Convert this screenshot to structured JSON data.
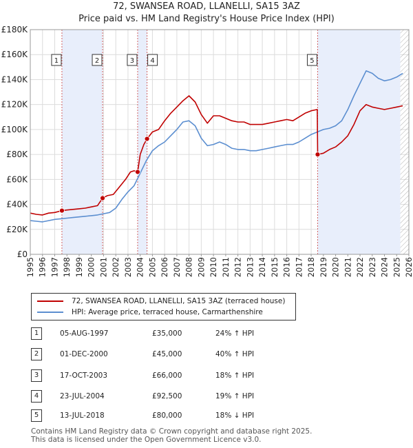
{
  "title_line1": "72, SWANSEA ROAD, LLANELLI, SA15 3AZ",
  "title_line2": "Price paid vs. HM Land Registry's House Price Index (HPI)",
  "colors": {
    "price": "#c00000",
    "hpi": "#5b8ed0",
    "shade": "#e8eefb",
    "vline": "#d06060"
  },
  "chart_data": {
    "type": "line",
    "xlim": [
      1995,
      2026
    ],
    "ylim": [
      0,
      180000
    ],
    "y_ticks": [
      0,
      20000,
      40000,
      60000,
      80000,
      100000,
      120000,
      140000,
      160000,
      180000
    ],
    "y_tick_labels": [
      "£0",
      "£20K",
      "£40K",
      "£60K",
      "£80K",
      "£100K",
      "£120K",
      "£140K",
      "£160K",
      "£180K"
    ],
    "x_ticks": [
      1995,
      1996,
      1997,
      1998,
      1999,
      2000,
      2001,
      2002,
      2003,
      2004,
      2005,
      2006,
      2007,
      2008,
      2009,
      2010,
      2011,
      2012,
      2013,
      2014,
      2015,
      2016,
      2017,
      2018,
      2019,
      2020,
      2021,
      2022,
      2023,
      2024,
      2025,
      2026
    ],
    "x_tick_labels": [
      "1995",
      "1996",
      "1997",
      "1998",
      "1999",
      "2000",
      "2001",
      "2002",
      "2003",
      "2004",
      "2005",
      "2006",
      "2007",
      "2008",
      "2009",
      "2010",
      "2011",
      "2012",
      "2013",
      "2014",
      "2015",
      "2016",
      "2017",
      "2018",
      "2019",
      "2020",
      "2021",
      "2022",
      "2023",
      "2024",
      "2025",
      "2026"
    ],
    "shaded_ranges": [
      [
        1997.59,
        2000.92
      ],
      [
        2003.79,
        2004.56
      ],
      [
        2018.53,
        2025.3
      ]
    ],
    "hatch_from": 2025.3,
    "series": [
      {
        "name": "72, SWANSEA ROAD, LLANELLI, SA15 3AZ (terraced house)",
        "points": [
          [
            1995,
            33000
          ],
          [
            1995.5,
            32000
          ],
          [
            1996,
            31500
          ],
          [
            1996.5,
            33000
          ],
          [
            1997,
            33500
          ],
          [
            1997.59,
            35000
          ],
          [
            1998,
            35500
          ],
          [
            1998.5,
            36000
          ],
          [
            1999,
            36500
          ],
          [
            1999.5,
            37000
          ],
          [
            2000,
            38000
          ],
          [
            2000.5,
            39000
          ],
          [
            2000.92,
            45000
          ],
          [
            2001.3,
            47000
          ],
          [
            2001.8,
            48000
          ],
          [
            2002.3,
            54000
          ],
          [
            2002.8,
            60000
          ],
          [
            2003.2,
            66000
          ],
          [
            2003.5,
            67000
          ],
          [
            2003.79,
            66000
          ],
          [
            2004.0,
            80000
          ],
          [
            2004.3,
            88000
          ],
          [
            2004.56,
            92500
          ],
          [
            2005.0,
            98000
          ],
          [
            2005.5,
            100000
          ],
          [
            2006,
            107000
          ],
          [
            2006.5,
            113000
          ],
          [
            2007,
            118000
          ],
          [
            2007.5,
            123000
          ],
          [
            2008,
            127000
          ],
          [
            2008.5,
            122000
          ],
          [
            2009,
            112000
          ],
          [
            2009.5,
            105000
          ],
          [
            2010,
            111000
          ],
          [
            2010.5,
            111000
          ],
          [
            2011,
            109000
          ],
          [
            2011.5,
            107000
          ],
          [
            2012,
            106000
          ],
          [
            2012.5,
            106000
          ],
          [
            2013,
            104000
          ],
          [
            2013.5,
            104000
          ],
          [
            2014,
            104000
          ],
          [
            2014.5,
            105000
          ],
          [
            2015,
            106000
          ],
          [
            2015.5,
            107000
          ],
          [
            2016,
            108000
          ],
          [
            2016.5,
            107000
          ],
          [
            2017,
            110000
          ],
          [
            2017.5,
            113000
          ],
          [
            2018,
            115000
          ],
          [
            2018.5,
            116000
          ],
          [
            2018.53,
            80000
          ],
          [
            2019,
            81000
          ],
          [
            2019.5,
            84000
          ],
          [
            2020,
            86000
          ],
          [
            2020.5,
            90000
          ],
          [
            2021,
            95000
          ],
          [
            2021.5,
            104000
          ],
          [
            2022,
            115000
          ],
          [
            2022.5,
            120000
          ],
          [
            2023,
            118000
          ],
          [
            2023.5,
            117000
          ],
          [
            2024,
            116000
          ],
          [
            2024.5,
            117000
          ],
          [
            2025,
            118000
          ],
          [
            2025.5,
            119000
          ]
        ]
      },
      {
        "name": "HPI: Average price, terraced house, Carmarthenshire",
        "points": [
          [
            1995,
            27000
          ],
          [
            1995.5,
            26500
          ],
          [
            1996,
            26000
          ],
          [
            1996.5,
            27000
          ],
          [
            1997,
            28000
          ],
          [
            1997.5,
            28500
          ],
          [
            1998,
            29000
          ],
          [
            1998.5,
            29500
          ],
          [
            1999,
            30000
          ],
          [
            1999.5,
            30500
          ],
          [
            2000,
            31000
          ],
          [
            2000.5,
            31500
          ],
          [
            2001,
            32500
          ],
          [
            2001.5,
            33500
          ],
          [
            2002,
            37000
          ],
          [
            2002.5,
            44000
          ],
          [
            2003,
            50000
          ],
          [
            2003.5,
            55000
          ],
          [
            2004,
            65000
          ],
          [
            2004.5,
            75000
          ],
          [
            2005,
            83000
          ],
          [
            2005.5,
            87000
          ],
          [
            2006,
            90000
          ],
          [
            2006.5,
            95000
          ],
          [
            2007,
            100000
          ],
          [
            2007.5,
            106000
          ],
          [
            2008,
            107000
          ],
          [
            2008.5,
            103000
          ],
          [
            2009,
            93000
          ],
          [
            2009.5,
            87000
          ],
          [
            2010,
            88000
          ],
          [
            2010.5,
            90000
          ],
          [
            2011,
            88000
          ],
          [
            2011.5,
            85000
          ],
          [
            2012,
            84000
          ],
          [
            2012.5,
            84000
          ],
          [
            2013,
            83000
          ],
          [
            2013.5,
            83000
          ],
          [
            2014,
            84000
          ],
          [
            2014.5,
            85000
          ],
          [
            2015,
            86000
          ],
          [
            2015.5,
            87000
          ],
          [
            2016,
            88000
          ],
          [
            2016.5,
            88000
          ],
          [
            2017,
            90000
          ],
          [
            2017.5,
            93000
          ],
          [
            2018,
            96000
          ],
          [
            2018.5,
            98000
          ],
          [
            2019,
            100000
          ],
          [
            2019.5,
            101000
          ],
          [
            2020,
            103000
          ],
          [
            2020.5,
            107000
          ],
          [
            2021,
            116000
          ],
          [
            2021.5,
            127000
          ],
          [
            2022,
            137000
          ],
          [
            2022.5,
            147000
          ],
          [
            2023,
            145000
          ],
          [
            2023.5,
            141000
          ],
          [
            2024,
            139000
          ],
          [
            2024.5,
            140000
          ],
          [
            2025,
            142000
          ],
          [
            2025.5,
            145000
          ]
        ]
      }
    ],
    "sales": [
      {
        "num": "1",
        "x": 1997.59,
        "price": 35000,
        "date": "05-AUG-1997",
        "price_label": "£35,000",
        "hpi": "24% ↑ HPI"
      },
      {
        "num": "2",
        "x": 2000.92,
        "price": 45000,
        "date": "01-DEC-2000",
        "price_label": "£45,000",
        "hpi": "40% ↑ HPI"
      },
      {
        "num": "3",
        "x": 2003.79,
        "price": 66000,
        "date": "17-OCT-2003",
        "price_label": "£66,000",
        "hpi": "18% ↑ HPI"
      },
      {
        "num": "4",
        "x": 2004.56,
        "price": 92500,
        "date": "23-JUL-2004",
        "price_label": "£92,500",
        "hpi": "19% ↑ HPI"
      },
      {
        "num": "5",
        "x": 2018.53,
        "price": 80000,
        "date": "13-JUL-2018",
        "price_label": "£80,000",
        "hpi": "18% ↓ HPI"
      }
    ]
  },
  "legend": {
    "price_label": "72, SWANSEA ROAD, LLANELLI, SA15 3AZ (terraced house)",
    "hpi_label": "HPI: Average price, terraced house, Carmarthenshire"
  },
  "footer": {
    "line1": "Contains HM Land Registry data © Crown copyright and database right 2025.",
    "line2": "This data is licensed under the Open Government Licence v3.0."
  }
}
